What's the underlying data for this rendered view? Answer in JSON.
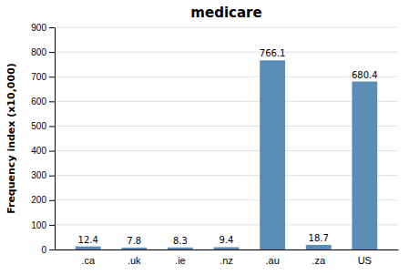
{
  "chart_data": {
    "type": "bar",
    "title": "medicare",
    "categories": [
      ".ca",
      ".uk",
      ".ie",
      ".nz",
      ".au",
      ".za",
      "US"
    ],
    "values": [
      12.4,
      7.8,
      8.3,
      9.4,
      766.1,
      18.7,
      680.4
    ],
    "color": "#5b8db8",
    "ylabel": "Frequency index (x10,000)",
    "ylim": [
      0,
      900
    ],
    "yticks": [
      0,
      100,
      200,
      300,
      400,
      500,
      600,
      700,
      800,
      900
    ],
    "grid": true,
    "data_labels": true
  }
}
